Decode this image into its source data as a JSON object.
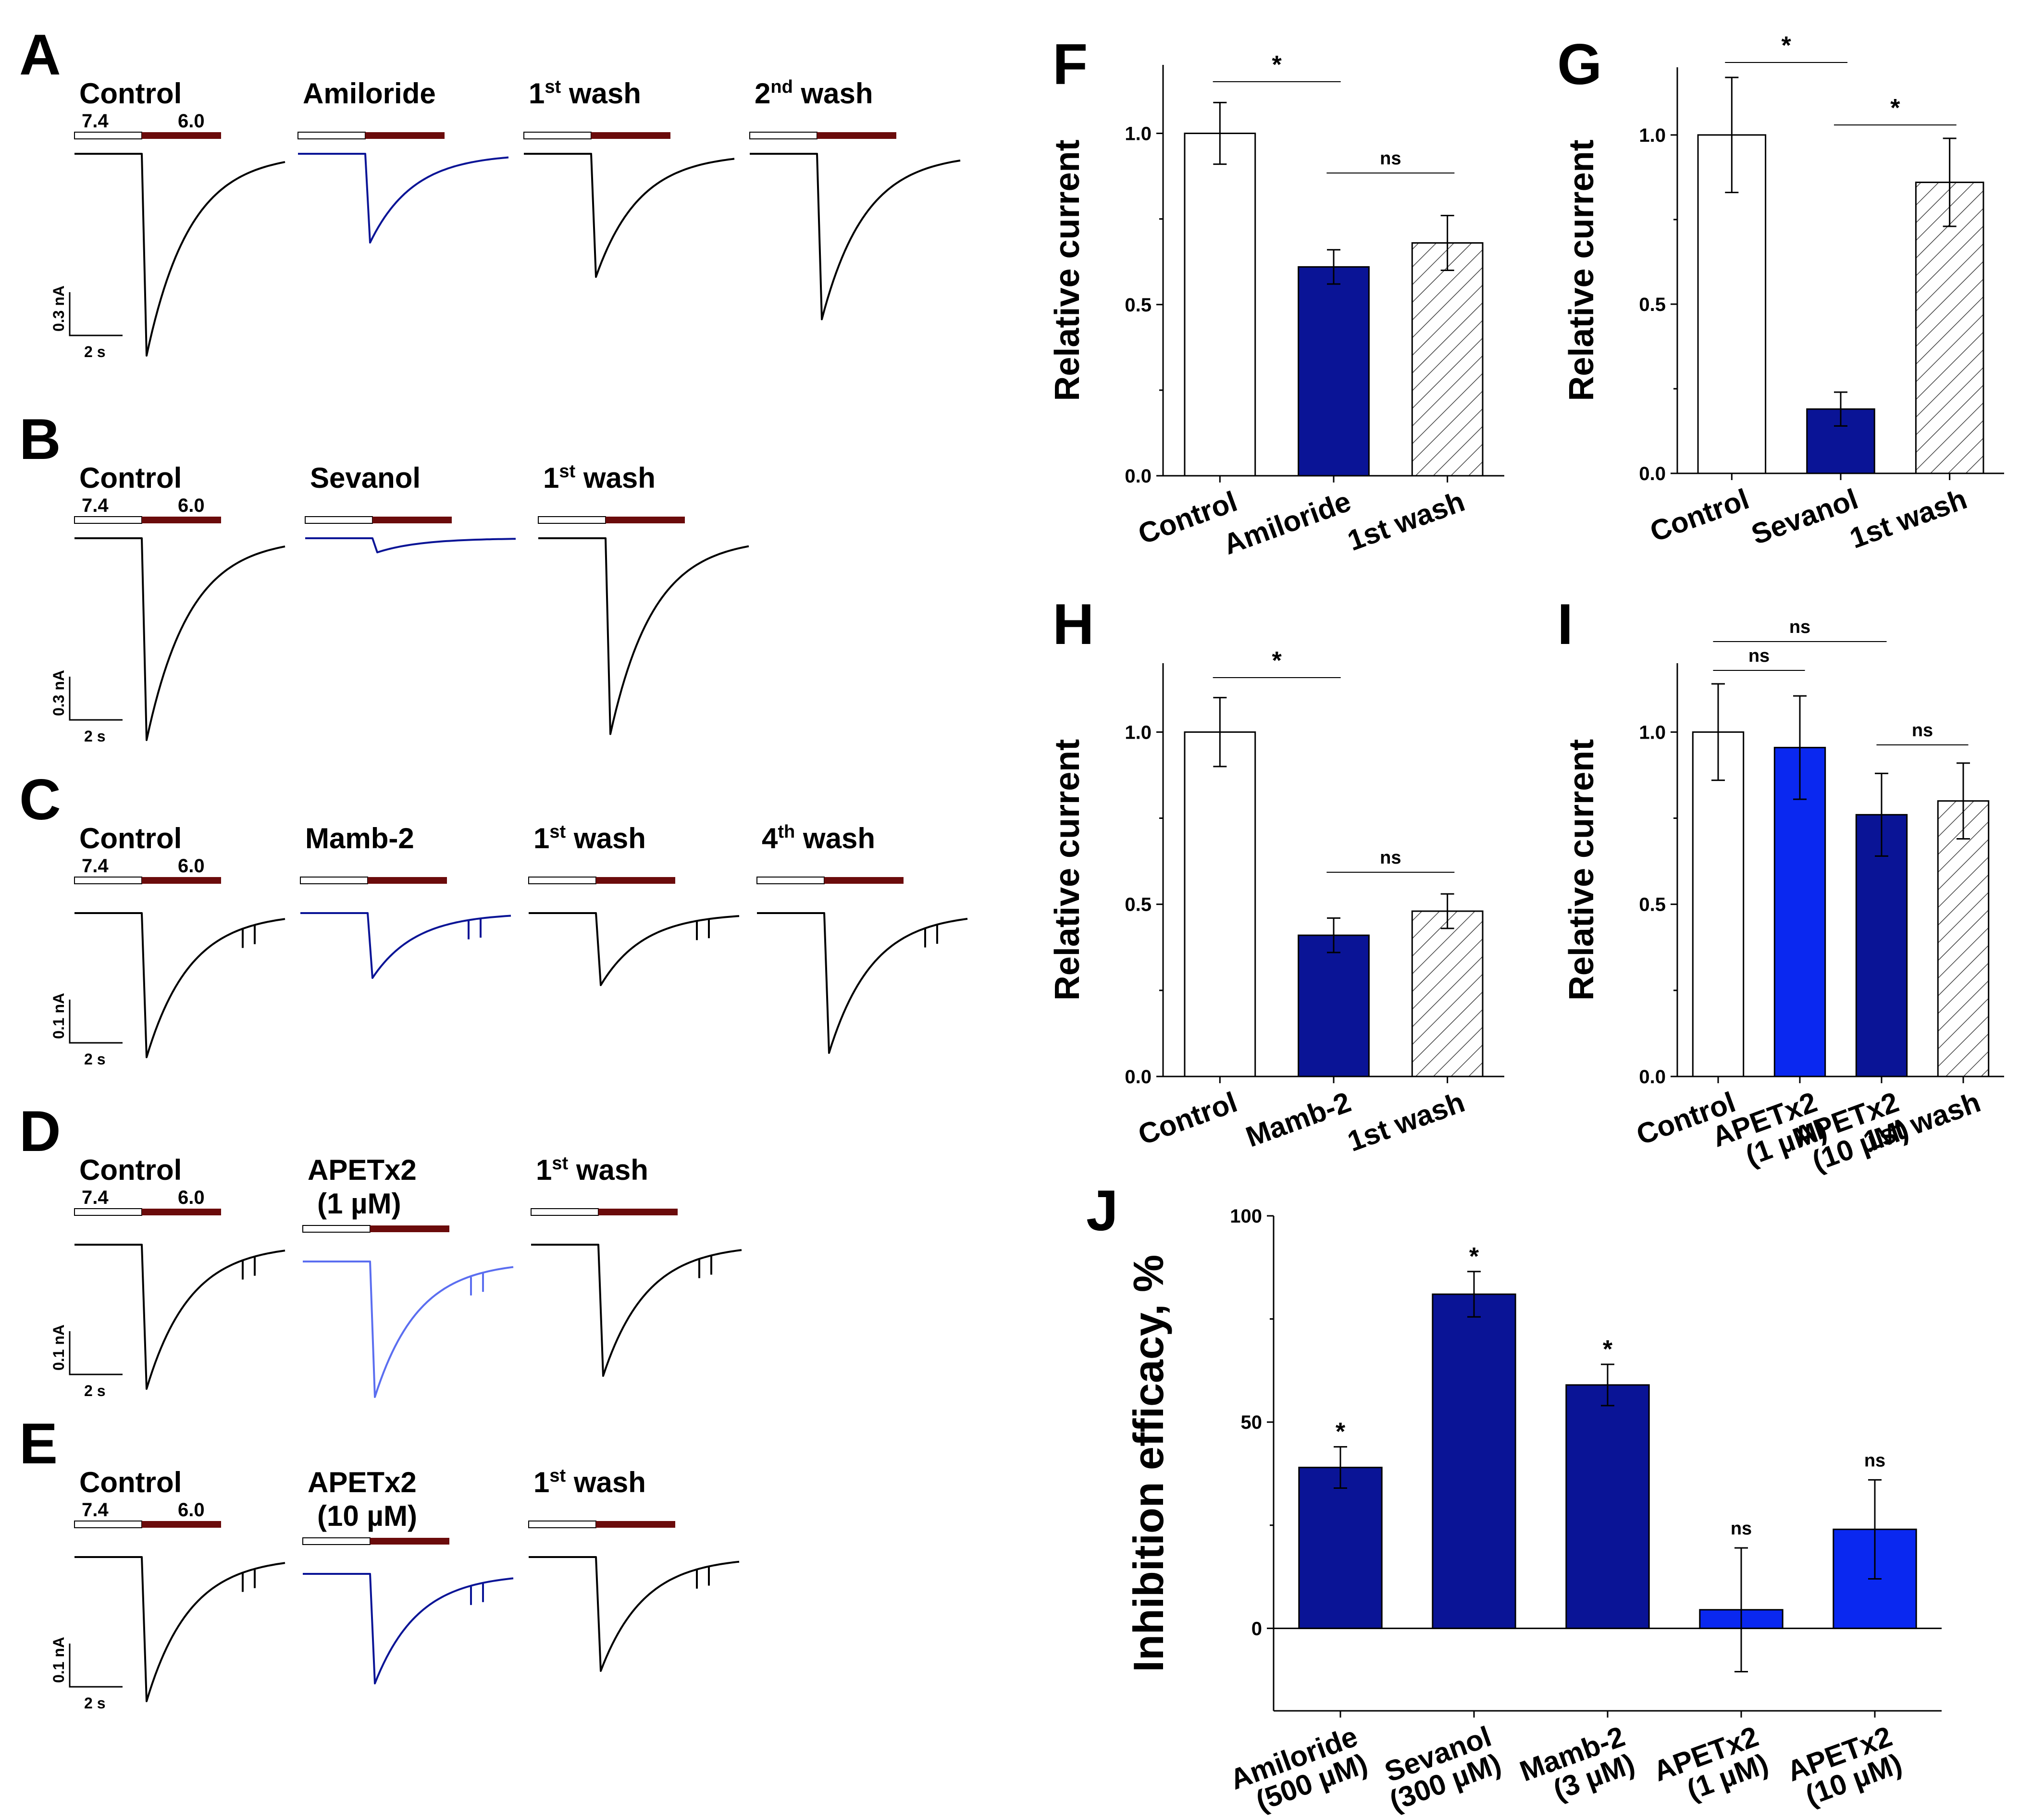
{
  "colors": {
    "navy": "#0a1496",
    "blue": "#0a28f0",
    "light_blue": "#5b6ef0",
    "dark_red": "#6b0b0b",
    "black": "#000000",
    "white": "#ffffff"
  },
  "traces": {
    "ph_from": "7.4",
    "ph_to": "6.0",
    "rows": [
      {
        "letter": "A",
        "scale_current": "0.3 nA",
        "scale_time": "2 s",
        "has_spikes": false,
        "conditions": [
          {
            "label": "Control",
            "sup": "",
            "post": "",
            "label2": "",
            "color": "black",
            "peak": 1.0
          },
          {
            "label": "Amiloride",
            "sup": "",
            "post": "",
            "label2": "",
            "color": "navy",
            "peak": 0.44
          },
          {
            "label": "1",
            "sup": "st",
            "post": " wash",
            "label2": "",
            "color": "black",
            "peak": 0.61
          },
          {
            "label": "2",
            "sup": "nd",
            "post": " wash",
            "label2": "",
            "color": "black",
            "peak": 0.82
          }
        ]
      },
      {
        "letter": "B",
        "scale_current": "0.3 nA",
        "scale_time": "2 s",
        "has_spikes": false,
        "conditions": [
          {
            "label": "Control",
            "sup": "",
            "post": "",
            "label2": "",
            "color": "black",
            "peak": 1.0
          },
          {
            "label": "Sevanol",
            "sup": "",
            "post": "",
            "label2": "",
            "color": "navy",
            "peak": 0.07
          },
          {
            "label": "1",
            "sup": "st",
            "post": " wash",
            "label2": "",
            "color": "black",
            "peak": 0.97
          }
        ]
      },
      {
        "letter": "C",
        "scale_current": "0.1 nA",
        "scale_time": "2 s",
        "has_spikes": true,
        "conditions": [
          {
            "label": "Control",
            "sup": "",
            "post": "",
            "label2": "",
            "color": "black",
            "peak": 1.0
          },
          {
            "label": "Mamb-2",
            "sup": "",
            "post": "",
            "label2": "",
            "color": "navy",
            "peak": 0.45
          },
          {
            "label": "1",
            "sup": "st",
            "post": " wash",
            "label2": "",
            "color": "black",
            "peak": 0.5
          },
          {
            "label": "4",
            "sup": "th",
            "post": " wash",
            "label2": "",
            "color": "black",
            "peak": 0.97
          }
        ]
      },
      {
        "letter": "D",
        "scale_current": "0.1 nA",
        "scale_time": "2 s",
        "has_spikes": true,
        "conditions": [
          {
            "label": "Control",
            "sup": "",
            "post": "",
            "label2": "",
            "color": "black",
            "peak": 1.0
          },
          {
            "label": "APETx2",
            "sup": "",
            "post": "",
            "label2": "(1 µM)",
            "color": "light_blue",
            "peak": 0.94
          },
          {
            "label": "1",
            "sup": "st",
            "post": " wash",
            "label2": "",
            "color": "black",
            "peak": 0.91
          }
        ]
      },
      {
        "letter": "E",
        "scale_current": "0.1 nA",
        "scale_time": "2 s",
        "has_spikes": true,
        "conditions": [
          {
            "label": "Control",
            "sup": "",
            "post": "",
            "label2": "",
            "color": "black",
            "peak": 1.0
          },
          {
            "label": "APETx2",
            "sup": "",
            "post": "",
            "label2": "(10 µM)",
            "color": "navy",
            "peak": 0.76
          },
          {
            "label": "1",
            "sup": "st",
            "post": " wash",
            "label2": "",
            "color": "black",
            "peak": 0.79
          }
        ]
      }
    ]
  },
  "chart_data": [
    {
      "panel": "F",
      "type": "bar",
      "ylabel": "Relative current",
      "ylim": [
        0,
        1.2
      ],
      "yticks": [
        "0.0",
        "0.5",
        "1.0"
      ],
      "categories": [
        "Control",
        "Amiloride",
        "1st wash"
      ],
      "values": [
        1.0,
        0.61,
        0.68
      ],
      "errors": [
        0.09,
        0.05,
        0.08
      ],
      "fills": [
        "white",
        "navy",
        "hatch"
      ],
      "significance": [
        {
          "from": 0,
          "to": 1,
          "label": "*"
        },
        {
          "from": 1,
          "to": 2,
          "label": "ns"
        }
      ]
    },
    {
      "panel": "G",
      "type": "bar",
      "ylabel": "Relative current",
      "ylim": [
        0,
        1.2
      ],
      "yticks": [
        "0.0",
        "0.5",
        "1.0"
      ],
      "categories": [
        "Control",
        "Sevanol",
        "1st wash"
      ],
      "values": [
        1.0,
        0.19,
        0.86
      ],
      "errors": [
        0.17,
        0.05,
        0.13
      ],
      "fills": [
        "white",
        "navy",
        "hatch"
      ],
      "significance": [
        {
          "from": 0,
          "to": 1,
          "label": "*"
        },
        {
          "from": 1,
          "to": 2,
          "label": "*"
        }
      ]
    },
    {
      "panel": "H",
      "type": "bar",
      "ylabel": "Relative current",
      "ylim": [
        0,
        1.2
      ],
      "yticks": [
        "0.0",
        "0.5",
        "1.0"
      ],
      "categories": [
        "Control",
        "Mamb-2",
        "1st wash"
      ],
      "values": [
        1.0,
        0.41,
        0.48
      ],
      "errors": [
        0.1,
        0.05,
        0.05
      ],
      "fills": [
        "white",
        "navy",
        "hatch"
      ],
      "significance": [
        {
          "from": 0,
          "to": 1,
          "label": "*"
        },
        {
          "from": 1,
          "to": 2,
          "label": "ns"
        }
      ]
    },
    {
      "panel": "I",
      "type": "bar",
      "ylabel": "Relative current",
      "ylim": [
        0,
        1.2
      ],
      "yticks": [
        "0.0",
        "0.5",
        "1.0"
      ],
      "categories": [
        "Control",
        "APETx2 (1 µM)",
        "APETx2 (10 µM)",
        "1st wash"
      ],
      "values": [
        1.0,
        0.955,
        0.76,
        0.8
      ],
      "errors": [
        0.14,
        0.15,
        0.12,
        0.11
      ],
      "fills": [
        "white",
        "blue",
        "navy",
        "hatch"
      ],
      "significance": [
        {
          "from": 0,
          "to": 1,
          "label": "ns"
        },
        {
          "from": 0,
          "to": 2,
          "label": "ns"
        },
        {
          "from": 2,
          "to": 3,
          "label": "ns"
        }
      ]
    },
    {
      "panel": "J",
      "type": "bar",
      "ylabel": "Inhibition efficacy, %",
      "ylim": [
        -20,
        100
      ],
      "yticks": [
        "0",
        "50",
        "100"
      ],
      "categories": [
        "Amiloride (500 µM)",
        "Sevanol (300 µM)",
        "Mamb-2 (3 µM)",
        "APETx2 (1 µM)",
        "APETx2 (10 µM)"
      ],
      "values": [
        39,
        81,
        59,
        4.5,
        24
      ],
      "errors": [
        5,
        5.5,
        5,
        15,
        12
      ],
      "fills": [
        "navy",
        "navy",
        "navy",
        "blue",
        "blue"
      ],
      "labels": [
        "*",
        "*",
        "*",
        "ns",
        "ns"
      ]
    }
  ]
}
